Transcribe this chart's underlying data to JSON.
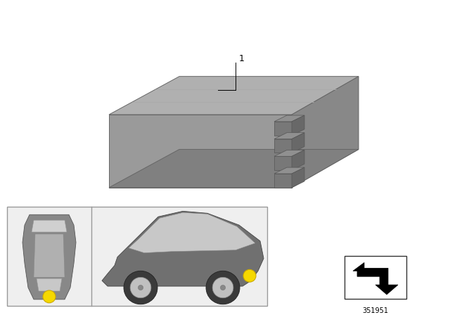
{
  "bg_color": "#ffffff",
  "fig_width": 6.4,
  "fig_height": 4.48,
  "dpi": 100,
  "label_1_text": "1",
  "part_number_text": "351951",
  "yellow_dot_color": "#f5d800",
  "box_top_color": "#b0b0b0",
  "box_front_color": "#9a9a9a",
  "box_right_color": "#888888",
  "box_bottom_color": "#808080",
  "box_edge_color": "#666666",
  "connector_face_color": "#787878",
  "connector_top_color": "#909090",
  "panel_bg": "#efefef",
  "panel_border": "#999999"
}
